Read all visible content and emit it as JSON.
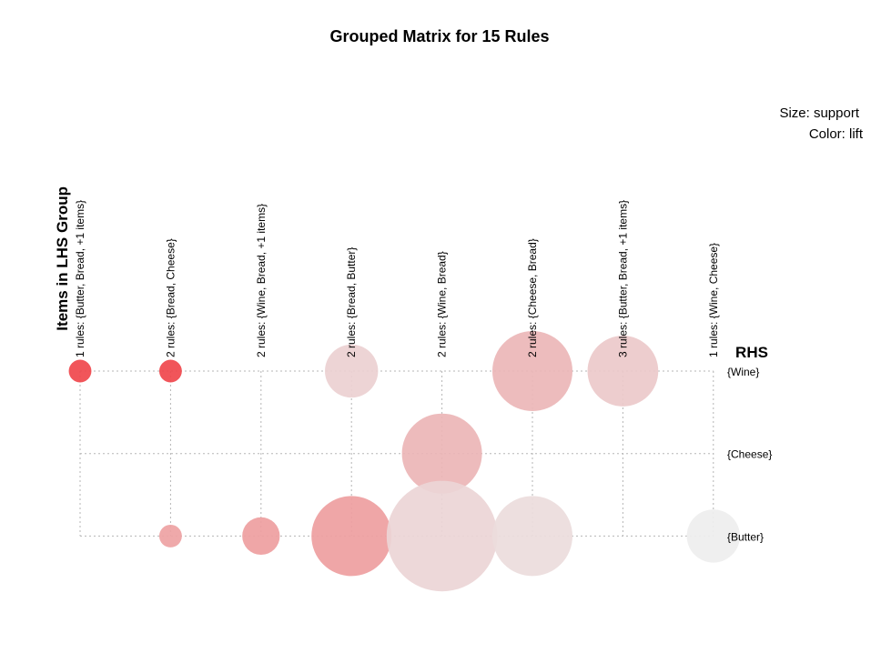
{
  "chart_data": {
    "type": "scatter",
    "title": "Grouped Matrix for 15 Rules",
    "legend": {
      "size_label": "Size: support",
      "color_label": "Color: lift"
    },
    "ylabel": "Items in LHS Group",
    "xlabel": "RHS",
    "lhs_groups": [
      "1 rules: {Butter, Bread, +1 items}",
      "2 rules: {Bread, Cheese}",
      "2 rules: {Wine, Bread, +1 items}",
      "2 rules: {Bread, Butter}",
      "2 rules: {Wine, Bread}",
      "2 rules: {Cheese, Bread}",
      "3 rules: {Butter, Bread, +1 items}",
      "1 rules: {Wine, Cheese}"
    ],
    "rhs": [
      "{Wine}",
      "{Cheese}",
      "{Butter}"
    ],
    "points": [
      {
        "group": 0,
        "rhs": 0,
        "support": 0.08,
        "color": "#f0474c"
      },
      {
        "group": 1,
        "rhs": 0,
        "support": 0.08,
        "color": "#f0474c"
      },
      {
        "group": 3,
        "rhs": 0,
        "support": 0.44,
        "color": "#ecd0d1"
      },
      {
        "group": 5,
        "rhs": 0,
        "support": 1.0,
        "color": "#ecb6b7"
      },
      {
        "group": 6,
        "rhs": 0,
        "support": 0.78,
        "color": "#ecc9ca"
      },
      {
        "group": 4,
        "rhs": 1,
        "support": 1.0,
        "color": "#ecb5b6"
      },
      {
        "group": 1,
        "rhs": 2,
        "support": 0.08,
        "color": "#eea2a3"
      },
      {
        "group": 2,
        "rhs": 2,
        "support": 0.22,
        "color": "#ee9e9f"
      },
      {
        "group": 3,
        "rhs": 2,
        "support": 1.0,
        "color": "#ee9e9f"
      },
      {
        "group": 4,
        "rhs": 2,
        "support": 1.91,
        "color": "#ecd5d6"
      },
      {
        "group": 5,
        "rhs": 2,
        "support": 1.0,
        "color": "#ecdcdc"
      },
      {
        "group": 7,
        "rhs": 2,
        "support": 0.44,
        "color": "#eeeeee"
      }
    ]
  }
}
